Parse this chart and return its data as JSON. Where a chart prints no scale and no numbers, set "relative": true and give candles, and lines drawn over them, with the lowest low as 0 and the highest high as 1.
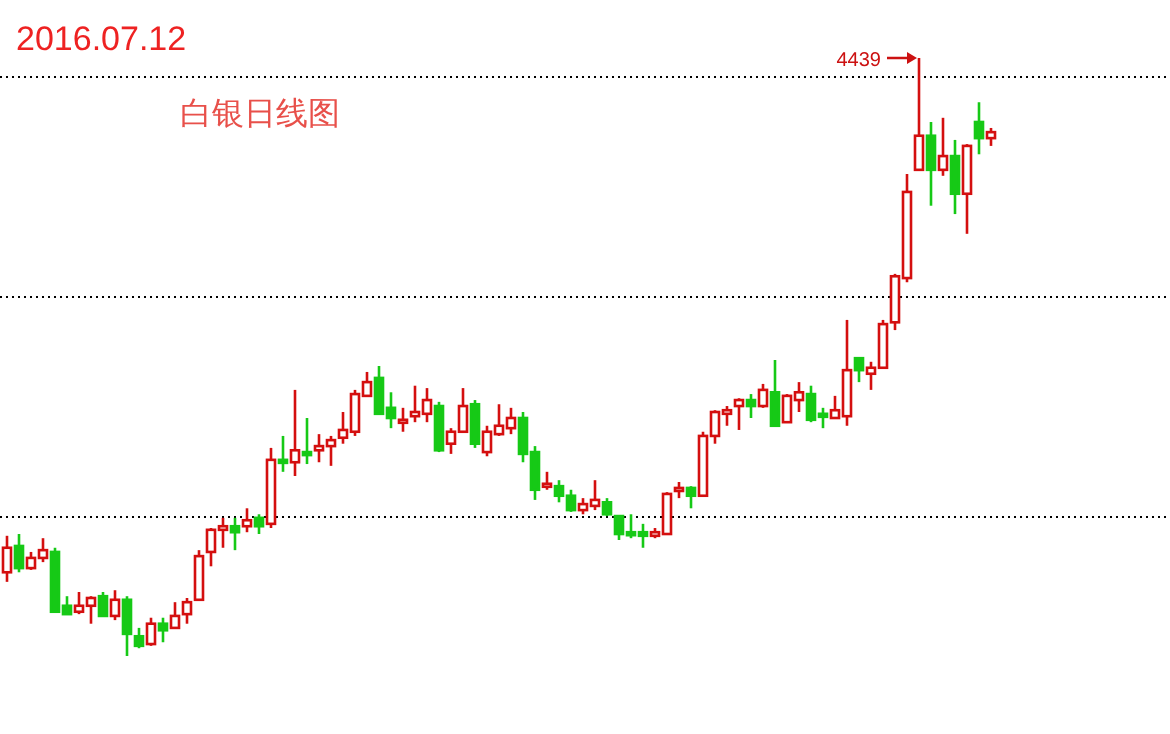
{
  "chart_data": {
    "type": "candlestick",
    "title": "2016.07.12",
    "subtitle": "白银日线图",
    "relative": true,
    "categories": [
      null,
      null,
      null,
      null,
      null,
      null,
      null,
      null,
      null,
      null,
      null,
      null,
      null,
      null,
      null,
      null,
      null,
      null,
      null,
      null,
      null,
      null,
      null,
      null,
      null,
      null,
      null,
      null,
      null,
      null,
      null,
      null,
      null,
      null,
      null,
      null,
      null,
      null,
      null,
      null,
      null,
      null,
      null,
      null,
      null,
      null,
      null,
      null,
      null,
      null,
      null,
      null,
      null,
      null,
      null,
      null,
      null,
      null,
      null,
      null,
      null,
      null,
      null,
      null,
      null,
      null,
      null,
      null,
      null,
      null,
      null,
      null,
      null,
      null,
      null,
      null,
      null,
      null,
      null,
      null,
      null,
      null,
      null
    ],
    "ohlc": [
      [
        0.14,
        0.201,
        0.124,
        0.181
      ],
      [
        0.184,
        0.204,
        0.14,
        0.147
      ],
      [
        0.147,
        0.174,
        0.144,
        0.164
      ],
      [
        0.164,
        0.197,
        0.157,
        0.177
      ],
      [
        0.174,
        0.181,
        0.074,
        0.074
      ],
      [
        0.084,
        0.1,
        0.07,
        0.07
      ],
      [
        0.074,
        0.107,
        0.07,
        0.084
      ],
      [
        0.084,
        0.1,
        0.054,
        0.097
      ],
      [
        0.1,
        0.107,
        0.067,
        0.067
      ],
      [
        0.067,
        0.11,
        0.06,
        0.094
      ],
      [
        0.094,
        0.1,
        0.0,
        0.037
      ],
      [
        0.033,
        0.047,
        0.013,
        0.017
      ],
      [
        0.02,
        0.064,
        0.017,
        0.054
      ],
      [
        0.054,
        0.064,
        0.023,
        0.043
      ],
      [
        0.047,
        0.09,
        0.047,
        0.067
      ],
      [
        0.07,
        0.097,
        0.054,
        0.09
      ],
      [
        0.094,
        0.177,
        0.094,
        0.167
      ],
      [
        0.174,
        0.214,
        0.15,
        0.211
      ],
      [
        0.211,
        0.231,
        0.181,
        0.217
      ],
      [
        0.217,
        0.231,
        0.177,
        0.207
      ],
      [
        0.217,
        0.247,
        0.207,
        0.227
      ],
      [
        0.231,
        0.237,
        0.204,
        0.217
      ],
      [
        0.221,
        0.348,
        0.214,
        0.328
      ],
      [
        0.328,
        0.368,
        0.308,
        0.324
      ],
      [
        0.324,
        0.445,
        0.301,
        0.344
      ],
      [
        0.341,
        0.398,
        0.321,
        0.338
      ],
      [
        0.344,
        0.371,
        0.324,
        0.351
      ],
      [
        0.351,
        0.368,
        0.318,
        0.361
      ],
      [
        0.365,
        0.408,
        0.355,
        0.378
      ],
      [
        0.375,
        0.445,
        0.368,
        0.438
      ],
      [
        0.435,
        0.475,
        0.435,
        0.458
      ],
      [
        0.465,
        0.485,
        0.405,
        0.405
      ],
      [
        0.415,
        0.441,
        0.381,
        0.398
      ],
      [
        0.391,
        0.415,
        0.375,
        0.395
      ],
      [
        0.401,
        0.452,
        0.391,
        0.408
      ],
      [
        0.405,
        0.448,
        0.391,
        0.428
      ],
      [
        0.418,
        0.425,
        0.341,
        0.344
      ],
      [
        0.355,
        0.381,
        0.338,
        0.375
      ],
      [
        0.375,
        0.448,
        0.375,
        0.418
      ],
      [
        0.421,
        0.428,
        0.348,
        0.355
      ],
      [
        0.341,
        0.385,
        0.334,
        0.375
      ],
      [
        0.371,
        0.421,
        0.368,
        0.385
      ],
      [
        0.381,
        0.415,
        0.371,
        0.398
      ],
      [
        0.398,
        0.408,
        0.324,
        0.338
      ],
      [
        0.341,
        0.351,
        0.261,
        0.278
      ],
      [
        0.284,
        0.308,
        0.278,
        0.288
      ],
      [
        0.284,
        0.294,
        0.257,
        0.268
      ],
      [
        0.268,
        0.278,
        0.241,
        0.244
      ],
      [
        0.244,
        0.264,
        0.237,
        0.254
      ],
      [
        0.251,
        0.294,
        0.244,
        0.261
      ],
      [
        0.257,
        0.264,
        0.234,
        0.237
      ],
      [
        0.234,
        0.234,
        0.194,
        0.204
      ],
      [
        0.207,
        0.237,
        0.197,
        0.205
      ],
      [
        0.207,
        0.221,
        0.181,
        0.201
      ],
      [
        0.201,
        0.214,
        0.197,
        0.207
      ],
      [
        0.204,
        0.274,
        0.204,
        0.271
      ],
      [
        0.278,
        0.291,
        0.264,
        0.281
      ],
      [
        0.281,
        0.284,
        0.247,
        0.268
      ],
      [
        0.268,
        0.375,
        0.268,
        0.368
      ],
      [
        0.368,
        0.411,
        0.355,
        0.408
      ],
      [
        0.405,
        0.418,
        0.385,
        0.411
      ],
      [
        0.418,
        0.431,
        0.378,
        0.428
      ],
      [
        0.428,
        0.438,
        0.398,
        0.418
      ],
      [
        0.418,
        0.455,
        0.415,
        0.445
      ],
      [
        0.441,
        0.495,
        0.385,
        0.385
      ],
      [
        0.391,
        0.438,
        0.391,
        0.435
      ],
      [
        0.428,
        0.458,
        0.408,
        0.441
      ],
      [
        0.438,
        0.452,
        0.391,
        0.395
      ],
      [
        0.405,
        0.415,
        0.381,
        0.403
      ],
      [
        0.398,
        0.435,
        0.398,
        0.411
      ],
      [
        0.401,
        0.562,
        0.385,
        0.478
      ],
      [
        0.498,
        0.498,
        0.458,
        0.478
      ],
      [
        0.472,
        0.492,
        0.445,
        0.482
      ],
      [
        0.482,
        0.562,
        0.482,
        0.555
      ],
      [
        0.558,
        0.639,
        0.545,
        0.635
      ],
      [
        0.632,
        0.806,
        0.625,
        0.776
      ],
      [
        0.813,
        1.0,
        0.813,
        0.87
      ],
      [
        0.87,
        0.893,
        0.753,
        0.813
      ],
      [
        0.813,
        0.9,
        0.803,
        0.836
      ],
      [
        0.836,
        0.863,
        0.739,
        0.773
      ],
      [
        0.773,
        0.856,
        0.706,
        0.853
      ],
      [
        0.893,
        0.926,
        0.839,
        0.866
      ],
      [
        0.866,
        0.883,
        0.853,
        0.876
      ]
    ],
    "colors": [
      "#d40f0f",
      "#16c916",
      "#d40f0f",
      "#d40f0f",
      "#16c916",
      "#16c916",
      "#d40f0f",
      "#d40f0f",
      "#16c916",
      "#d40f0f",
      "#16c916",
      "#16c916",
      "#d40f0f",
      "#16c916",
      "#d40f0f",
      "#d40f0f",
      "#d40f0f",
      "#d40f0f",
      "#d40f0f",
      "#16c916",
      "#d40f0f",
      "#16c916",
      "#d40f0f",
      "#16c916",
      "#d40f0f",
      "#16c916",
      "#d40f0f",
      "#d40f0f",
      "#d40f0f",
      "#d40f0f",
      "#d40f0f",
      "#16c916",
      "#16c916",
      "#d40f0f",
      "#d40f0f",
      "#d40f0f",
      "#16c916",
      "#d40f0f",
      "#d40f0f",
      "#16c916",
      "#d40f0f",
      "#d40f0f",
      "#d40f0f",
      "#16c916",
      "#16c916",
      "#d40f0f",
      "#16c916",
      "#16c916",
      "#d40f0f",
      "#d40f0f",
      "#16c916",
      "#16c916",
      "#16c916",
      "#16c916",
      "#d40f0f",
      "#d40f0f",
      "#d40f0f",
      "#16c916",
      "#d40f0f",
      "#d40f0f",
      "#d40f0f",
      "#d40f0f",
      "#16c916",
      "#d40f0f",
      "#16c916",
      "#d40f0f",
      "#d40f0f",
      "#16c916",
      "#16c916",
      "#d40f0f",
      "#d40f0f",
      "#16c916",
      "#d40f0f",
      "#d40f0f",
      "#d40f0f",
      "#d40f0f",
      "#d40f0f",
      "#16c916",
      "#d40f0f",
      "#16c916",
      "#d40f0f",
      "#16c916",
      "#d40f0f"
    ],
    "annotations": [
      "4439"
    ],
    "ref_lines": [
      {
        "axis": "y",
        "value": 0.97,
        "line_style": "dotted",
        "color": "#000000"
      },
      {
        "axis": "y",
        "value": 0.602,
        "line_style": "dotted",
        "color": "#000000"
      },
      {
        "axis": "y",
        "value": 0.234,
        "line_style": "dotted",
        "color": "#000000"
      }
    ]
  }
}
